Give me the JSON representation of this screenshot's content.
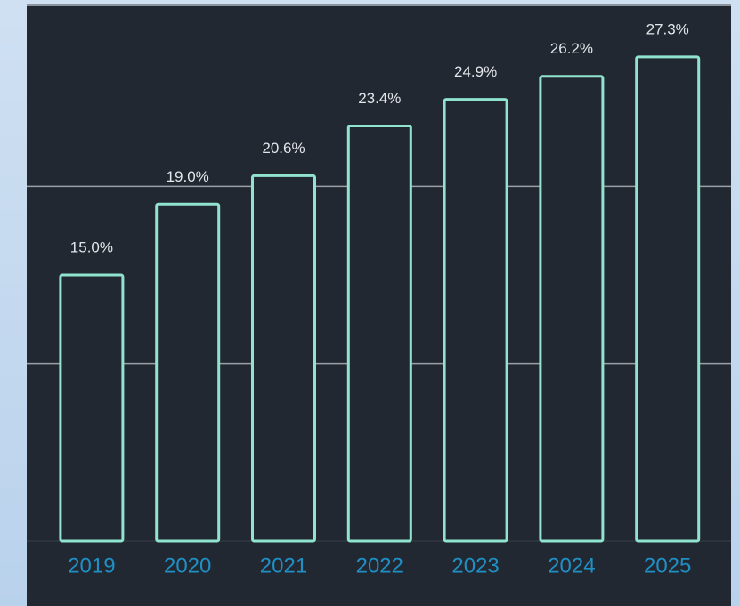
{
  "chart_data": {
    "type": "bar",
    "categories": [
      "2019",
      "2020",
      "2021",
      "2022",
      "2023",
      "2024",
      "2025"
    ],
    "values": [
      15.0,
      19.0,
      20.6,
      23.4,
      24.9,
      26.2,
      27.3
    ],
    "value_labels": [
      "15.0%",
      "19.0%",
      "20.6%",
      "23.4%",
      "24.9%",
      "26.2%",
      "27.3%"
    ],
    "color": "#8fe3cf",
    "ylim": [
      0,
      30
    ],
    "yticks": [
      10,
      20
    ],
    "grid": true
  }
}
